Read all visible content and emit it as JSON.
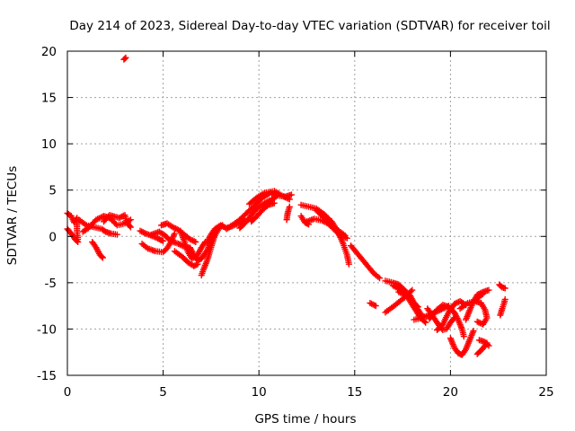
{
  "chart_data": {
    "type": "scatter",
    "title": "Day 214 of 2023, Sidereal Day-to-day VTEC variation (SDTVAR) for receiver toil",
    "xlabel": "GPS time / hours",
    "ylabel": "SDTVAR / TECUs",
    "xlim": [
      0,
      25
    ],
    "ylim": [
      -15,
      20
    ],
    "x_ticks": [
      0,
      5,
      10,
      15,
      20,
      25
    ],
    "y_ticks": [
      -15,
      -10,
      -5,
      0,
      5,
      10,
      15,
      20
    ],
    "grid": true,
    "marker": "+",
    "series": [
      {
        "name": "SDTVAR",
        "color": "#ff0000",
        "tracks": [
          [
            [
              0.0,
              2.5
            ],
            [
              0.2,
              2.2
            ],
            [
              0.35,
              1.5
            ],
            [
              0.5,
              2.0
            ],
            [
              0.5,
              0.5
            ],
            [
              0.55,
              -0.3
            ]
          ],
          [
            [
              0.0,
              0.8
            ],
            [
              0.2,
              0.3
            ],
            [
              0.4,
              -0.3
            ],
            [
              0.55,
              -0.6
            ]
          ],
          [
            [
              1.3,
              -0.6
            ],
            [
              1.5,
              -1.2
            ],
            [
              1.7,
              -2.0
            ],
            [
              1.85,
              -2.3
            ]
          ],
          [
            [
              0.6,
              1.8
            ],
            [
              1.0,
              1.2
            ],
            [
              1.4,
              1.0
            ],
            [
              1.8,
              0.8
            ],
            [
              2.0,
              0.5
            ],
            [
              2.3,
              0.3
            ],
            [
              2.6,
              0.2
            ]
          ],
          [
            [
              0.8,
              0.5
            ],
            [
              1.1,
              0.9
            ],
            [
              1.5,
              1.8
            ],
            [
              1.9,
              2.2
            ],
            [
              2.2,
              2.0
            ],
            [
              2.6,
              1.2
            ],
            [
              3.0,
              1.4
            ],
            [
              3.3,
              1.8
            ]
          ],
          [
            [
              1.9,
              1.6
            ],
            [
              2.2,
              2.3
            ],
            [
              2.7,
              2.0
            ],
            [
              3.0,
              2.3
            ],
            [
              3.1,
              1.5
            ],
            [
              3.3,
              1.0
            ]
          ],
          [
            [
              2.95,
              19.1
            ],
            [
              3.05,
              19.3
            ]
          ],
          [
            [
              3.8,
              0.6
            ],
            [
              4.1,
              0.3
            ],
            [
              4.5,
              0.0
            ],
            [
              4.8,
              -0.3
            ],
            [
              5.0,
              -0.5
            ]
          ],
          [
            [
              3.9,
              -0.8
            ],
            [
              4.2,
              -1.3
            ],
            [
              4.6,
              -1.6
            ],
            [
              5.0,
              -1.7
            ],
            [
              5.2,
              -1.3
            ],
            [
              5.4,
              -0.6
            ],
            [
              5.6,
              0.3
            ]
          ],
          [
            [
              4.4,
              0.2
            ],
            [
              4.8,
              0.5
            ],
            [
              5.1,
              0.1
            ],
            [
              5.4,
              -0.5
            ],
            [
              5.8,
              -0.8
            ],
            [
              6.1,
              -1.1
            ],
            [
              6.4,
              -1.3
            ]
          ],
          [
            [
              4.9,
              1.2
            ],
            [
              5.2,
              1.4
            ],
            [
              5.5,
              1.0
            ],
            [
              5.8,
              0.7
            ],
            [
              6.1,
              0.2
            ],
            [
              6.4,
              -0.3
            ],
            [
              6.7,
              -0.6
            ]
          ],
          [
            [
              5.6,
              -1.6
            ],
            [
              6.0,
              -2.2
            ],
            [
              6.3,
              -2.8
            ],
            [
              6.6,
              -3.2
            ],
            [
              6.8,
              -3.0
            ]
          ],
          [
            [
              5.9,
              0.6
            ],
            [
              6.1,
              -0.5
            ],
            [
              6.3,
              -1.7
            ],
            [
              6.5,
              -2.4
            ],
            [
              6.8,
              -2.0
            ],
            [
              7.0,
              -1.2
            ],
            [
              7.2,
              -0.6
            ]
          ],
          [
            [
              6.4,
              -1.2
            ],
            [
              6.6,
              -2.0
            ],
            [
              6.8,
              -2.6
            ],
            [
              7.0,
              -2.4
            ],
            [
              7.3,
              -1.5
            ],
            [
              7.5,
              -0.5
            ],
            [
              7.7,
              0.4
            ],
            [
              7.9,
              1.0
            ],
            [
              8.1,
              1.2
            ]
          ],
          [
            [
              7.0,
              -4.2
            ],
            [
              7.1,
              -3.6
            ],
            [
              7.3,
              -2.6
            ],
            [
              7.5,
              -1.2
            ],
            [
              7.7,
              0.1
            ],
            [
              7.9,
              0.8
            ]
          ],
          [
            [
              7.3,
              -0.6
            ],
            [
              7.5,
              0.2
            ],
            [
              7.7,
              0.8
            ],
            [
              8.0,
              1.2
            ],
            [
              8.3,
              0.9
            ],
            [
              8.6,
              1.1
            ],
            [
              9.0,
              1.5
            ],
            [
              9.2,
              1.9
            ]
          ],
          [
            [
              8.3,
              0.8
            ],
            [
              8.6,
              1.2
            ],
            [
              9.0,
              1.8
            ],
            [
              9.4,
              2.6
            ],
            [
              9.8,
              3.4
            ],
            [
              10.2,
              4.2
            ],
            [
              10.6,
              4.7
            ],
            [
              11.0,
              4.4
            ],
            [
              11.4,
              4.3
            ],
            [
              11.7,
              4.5
            ]
          ],
          [
            [
              9.0,
              0.9
            ],
            [
              9.3,
              1.5
            ],
            [
              9.6,
              2.3
            ],
            [
              9.9,
              3.0
            ],
            [
              10.3,
              3.6
            ],
            [
              10.6,
              3.9
            ],
            [
              10.9,
              4.3
            ]
          ],
          [
            [
              9.5,
              3.5
            ],
            [
              9.9,
              4.2
            ],
            [
              10.3,
              4.7
            ],
            [
              10.8,
              4.9
            ],
            [
              11.2,
              4.4
            ],
            [
              11.6,
              4.0
            ]
          ],
          [
            [
              9.6,
              1.6
            ],
            [
              9.9,
              2.2
            ],
            [
              10.2,
              2.9
            ],
            [
              10.5,
              3.4
            ],
            [
              10.8,
              3.6
            ]
          ],
          [
            [
              11.45,
              1.8
            ],
            [
              11.5,
              2.5
            ],
            [
              11.6,
              3.2
            ]
          ],
          [
            [
              12.2,
              2.2
            ],
            [
              12.4,
              1.5
            ],
            [
              12.6,
              1.3
            ]
          ],
          [
            [
              12.2,
              3.4
            ],
            [
              12.6,
              3.2
            ],
            [
              13.0,
              3.0
            ],
            [
              13.4,
              2.4
            ],
            [
              13.8,
              1.6
            ],
            [
              14.1,
              0.6
            ],
            [
              14.4,
              -0.8
            ],
            [
              14.6,
              -2.0
            ],
            [
              14.7,
              -3.0
            ]
          ],
          [
            [
              12.5,
              1.6
            ],
            [
              12.9,
              1.9
            ],
            [
              13.3,
              1.7
            ],
            [
              13.7,
              1.3
            ],
            [
              14.1,
              0.7
            ],
            [
              14.5,
              0.1
            ]
          ],
          [
            [
              13.0,
              2.8
            ],
            [
              13.4,
              2.0
            ],
            [
              13.8,
              1.0
            ],
            [
              14.2,
              0.2
            ],
            [
              14.6,
              -0.2
            ]
          ],
          [
            [
              14.8,
              -1.0
            ],
            [
              15.2,
              -2.0
            ],
            [
              15.6,
              -3.0
            ],
            [
              16.0,
              -4.0
            ],
            [
              16.3,
              -4.5
            ]
          ],
          [
            [
              15.8,
              -7.2
            ],
            [
              16.1,
              -7.5
            ]
          ],
          [
            [
              16.6,
              -4.8
            ],
            [
              17.0,
              -5.0
            ],
            [
              17.3,
              -5.2
            ],
            [
              17.6,
              -5.8
            ],
            [
              17.9,
              -6.4
            ],
            [
              18.1,
              -7.2
            ],
            [
              18.3,
              -7.9
            ],
            [
              18.5,
              -8.5
            ]
          ],
          [
            [
              16.6,
              -8.2
            ],
            [
              17.0,
              -7.6
            ],
            [
              17.3,
              -7.1
            ],
            [
              17.6,
              -6.6
            ],
            [
              17.8,
              -6.2
            ],
            [
              18.0,
              -5.8
            ]
          ],
          [
            [
              17.0,
              -5.3
            ],
            [
              17.4,
              -5.8
            ],
            [
              17.8,
              -6.7
            ],
            [
              18.1,
              -7.7
            ],
            [
              18.4,
              -8.7
            ],
            [
              18.7,
              -9.3
            ]
          ],
          [
            [
              17.3,
              -6.0
            ],
            [
              17.7,
              -6.4
            ],
            [
              18.0,
              -7.0
            ],
            [
              18.3,
              -7.6
            ]
          ],
          [
            [
              18.1,
              -9.0
            ],
            [
              18.5,
              -8.8
            ],
            [
              18.9,
              -8.5
            ],
            [
              19.3,
              -8.1
            ],
            [
              19.6,
              -7.8
            ],
            [
              19.9,
              -7.5
            ]
          ],
          [
            [
              18.8,
              -7.8
            ],
            [
              19.1,
              -8.7
            ],
            [
              19.4,
              -9.6
            ],
            [
              19.6,
              -10.1
            ],
            [
              19.8,
              -10.0
            ],
            [
              20.0,
              -9.3
            ],
            [
              20.2,
              -8.8
            ]
          ],
          [
            [
              18.9,
              -8.9
            ],
            [
              19.3,
              -7.9
            ],
            [
              19.6,
              -7.4
            ],
            [
              19.9,
              -7.6
            ],
            [
              20.2,
              -8.2
            ],
            [
              20.4,
              -9.0
            ],
            [
              20.6,
              -10.0
            ],
            [
              20.7,
              -10.8
            ]
          ],
          [
            [
              19.3,
              -10.1
            ],
            [
              19.6,
              -9.5
            ],
            [
              19.9,
              -8.2
            ],
            [
              20.2,
              -7.3
            ],
            [
              20.5,
              -7.0
            ],
            [
              20.8,
              -7.4
            ]
          ],
          [
            [
              20.0,
              -11.0
            ],
            [
              20.2,
              -12.0
            ],
            [
              20.4,
              -12.6
            ],
            [
              20.6,
              -12.8
            ],
            [
              20.8,
              -12.2
            ],
            [
              21.0,
              -11.2
            ],
            [
              21.2,
              -10.2
            ]
          ],
          [
            [
              20.5,
              -7.8
            ],
            [
              20.9,
              -7.2
            ],
            [
              21.3,
              -7.0
            ],
            [
              21.6,
              -7.2
            ],
            [
              21.8,
              -7.9
            ],
            [
              21.9,
              -8.8
            ],
            [
              21.7,
              -9.5
            ],
            [
              21.4,
              -9.2
            ]
          ],
          [
            [
              20.8,
              -9.0
            ],
            [
              21.0,
              -8.0
            ],
            [
              21.2,
              -7.0
            ],
            [
              21.4,
              -6.3
            ],
            [
              21.7,
              -6.0
            ],
            [
              22.0,
              -5.8
            ]
          ],
          [
            [
              21.4,
              -12.7
            ],
            [
              21.7,
              -12.1
            ],
            [
              21.9,
              -11.5
            ]
          ],
          [
            [
              21.5,
              -11.2
            ],
            [
              21.8,
              -11.4
            ],
            [
              22.0,
              -11.8
            ]
          ],
          [
            [
              21.3,
              -6.8
            ],
            [
              21.5,
              -6.5
            ],
            [
              21.7,
              -6.2
            ]
          ],
          [
            [
              22.55,
              -5.2
            ],
            [
              22.7,
              -5.5
            ],
            [
              22.85,
              -5.6
            ]
          ],
          [
            [
              22.6,
              -8.5
            ],
            [
              22.7,
              -7.8
            ],
            [
              22.8,
              -7.2
            ],
            [
              22.85,
              -6.8
            ]
          ]
        ]
      }
    ]
  }
}
